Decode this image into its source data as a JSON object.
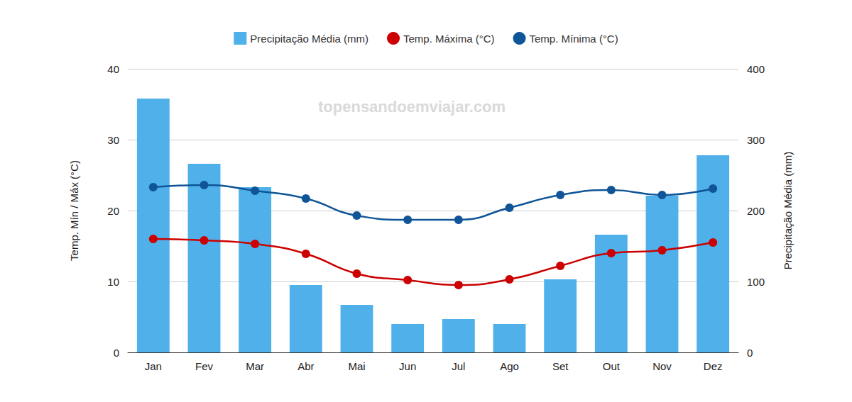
{
  "chart_data": {
    "type": "bar",
    "categories": [
      "Jan",
      "Fev",
      "Mar",
      "Abr",
      "Mai",
      "Jun",
      "Jul",
      "Ago",
      "Set",
      "Out",
      "Nov",
      "Dez"
    ],
    "series": [
      {
        "name": "Precipitação Média (mm)",
        "type": "bar",
        "axis": "y2",
        "color": "#4fb0ea",
        "marker": "square",
        "values": [
          358,
          266,
          233,
          95,
          67,
          40,
          47,
          40,
          103,
          166,
          221,
          278
        ]
      },
      {
        "name": "Temp. Máxima (°C)",
        "type": "line",
        "color": "#cc0000",
        "marker": "circle",
        "line_style": "smooth",
        "values": [
          16.0,
          15.8,
          15.3,
          13.9,
          11.1,
          10.2,
          9.5,
          10.3,
          12.2,
          14.0,
          14.4,
          15.5
        ]
      },
      {
        "name": "Temp. Mínima (°C)",
        "type": "line",
        "color": "#0f5597",
        "marker": "circle",
        "line_style": "smooth",
        "values": [
          23.3,
          23.6,
          22.8,
          21.7,
          19.3,
          18.7,
          18.7,
          20.4,
          22.2,
          22.9,
          22.2,
          23.1
        ]
      }
    ],
    "y_label": "Temp. Mín / Máx (°C)",
    "y2_label": "Precipitação Média (mm)",
    "ylim": [
      0,
      40
    ],
    "yticks": [
      0,
      10,
      20,
      30,
      40
    ],
    "y2lim": [
      0,
      400
    ],
    "y2ticks": [
      0,
      100,
      200,
      300,
      400
    ],
    "grid": true,
    "legend": "top",
    "annotations": [
      "topensandoemviajar.com"
    ]
  }
}
